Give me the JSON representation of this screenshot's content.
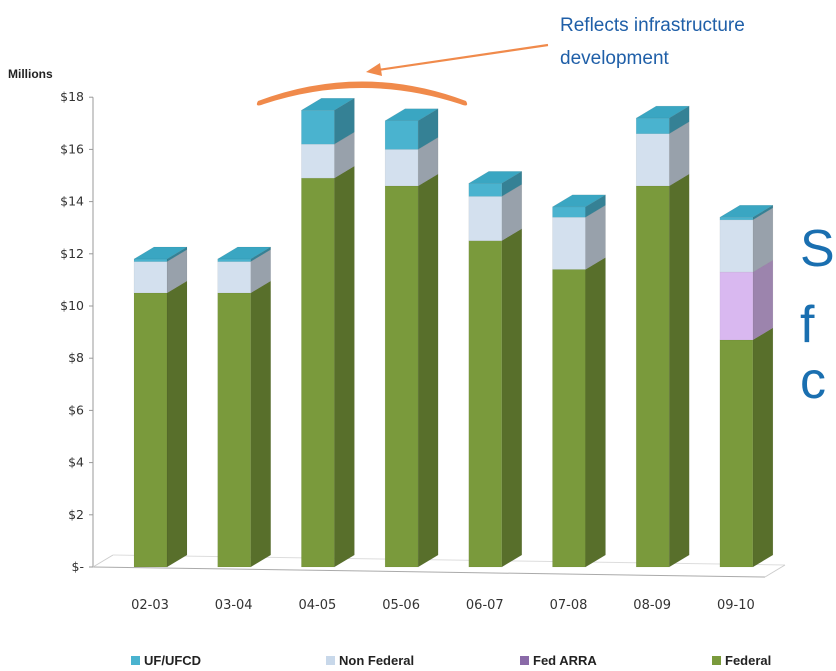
{
  "chart_data": {
    "type": "bar",
    "stacked": true,
    "three_d": true,
    "unit_label": "Millions",
    "categories": [
      "02-03",
      "03-04",
      "04-05",
      "05-06",
      "06-07",
      "07-08",
      "08-09",
      "09-10"
    ],
    "series": [
      {
        "name": "Federal",
        "color": "#7a9a3c",
        "values": [
          10.5,
          10.5,
          14.9,
          14.6,
          12.5,
          11.4,
          14.6,
          8.7
        ]
      },
      {
        "name": "Fed ARRA",
        "color": "#d9b8f0",
        "values": [
          0,
          0,
          0,
          0,
          0,
          0,
          0,
          2.6
        ]
      },
      {
        "name": "Non Federal",
        "color": "#d3e0ee",
        "values": [
          1.2,
          1.2,
          1.3,
          1.4,
          1.7,
          2.0,
          2.0,
          2.0
        ]
      },
      {
        "name": "UF/UFCD",
        "color": "#4ab3cf",
        "values": [
          0.1,
          0.1,
          1.3,
          1.1,
          0.5,
          0.4,
          0.6,
          0.1
        ]
      }
    ],
    "legend": {
      "placement": "bottom",
      "items": [
        {
          "name": "UF/UFCD",
          "color": "#4ab3cf"
        },
        {
          "name": "Non Federal",
          "color": "#c8d8ea"
        },
        {
          "name": "Fed ARRA",
          "color": "#8a6aa8"
        },
        {
          "name": "Federal",
          "color": "#7a9a3c"
        }
      ]
    },
    "y_ticks": [
      "$-",
      "$2",
      "$4",
      "$6",
      "$8",
      "$10",
      "$12",
      "$14",
      "$16",
      "$18"
    ],
    "ylim": [
      0,
      18
    ],
    "grid": false,
    "annotation": {
      "lines": [
        "Reflects infrastructure",
        "development"
      ],
      "color": "#1f5fa8",
      "arrow_color": "#f08a4b"
    },
    "clipped_text": {
      "letters": [
        "S",
        "f",
        "c"
      ],
      "color": "#1a6fb0"
    }
  }
}
